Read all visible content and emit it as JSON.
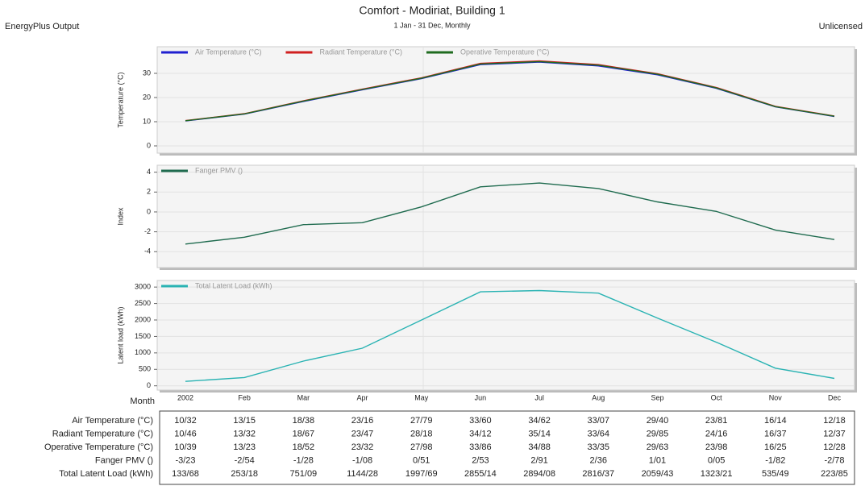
{
  "header": {
    "app": "EnergyPlus Output",
    "title": "Comfort - Modiriat, Building 1",
    "subtitle": "1 Jan - 31 Dec, Monthly",
    "license": "Unlicensed"
  },
  "table": {
    "month_label": "Month"
  },
  "chart_data": [
    {
      "type": "line",
      "ylabel": "Temperature (°C)",
      "ylim": [
        -3,
        41
      ],
      "yticks": [
        0,
        10,
        20,
        30
      ],
      "grid": true,
      "series": [
        {
          "name": "Air Temperature (°C)",
          "color": "#1f1fd0",
          "values": [
            10.32,
            13.15,
            18.38,
            23.16,
            27.79,
            33.6,
            34.62,
            33.07,
            29.4,
            23.81,
            16.14,
            12.18
          ],
          "value_labels": [
            "10/32",
            "13/15",
            "18/38",
            "23/16",
            "27/79",
            "33/60",
            "34/62",
            "33/07",
            "29/40",
            "23/81",
            "16/14",
            "12/18"
          ]
        },
        {
          "name": "Radiant Temperature (°C)",
          "color": "#d01f1f",
          "values": [
            10.46,
            13.32,
            18.67,
            23.47,
            28.18,
            34.12,
            35.14,
            33.64,
            29.85,
            24.16,
            16.37,
            12.37
          ],
          "value_labels": [
            "10/46",
            "13/32",
            "18/67",
            "23/47",
            "28/18",
            "34/12",
            "35/14",
            "33/64",
            "29/85",
            "24/16",
            "16/37",
            "12/37"
          ]
        },
        {
          "name": "Operative Temperature (°C)",
          "color": "#1f6b1f",
          "values": [
            10.39,
            13.23,
            18.52,
            23.32,
            27.98,
            33.86,
            34.88,
            33.35,
            29.63,
            23.98,
            16.25,
            12.28
          ],
          "value_labels": [
            "10/39",
            "13/23",
            "18/52",
            "23/32",
            "27/98",
            "33/86",
            "34/88",
            "33/35",
            "29/63",
            "23/98",
            "16/25",
            "12/28"
          ]
        }
      ]
    },
    {
      "type": "line",
      "ylabel": "Index",
      "ylim": [
        -5.6,
        4.7
      ],
      "yticks": [
        -4,
        -2,
        0,
        2,
        4
      ],
      "grid": true,
      "series": [
        {
          "name": "Fanger PMV ()",
          "color": "#1f6b4f",
          "values": [
            -3.23,
            -2.54,
            -1.28,
            -1.08,
            0.51,
            2.53,
            2.91,
            2.36,
            1.01,
            0.05,
            -1.82,
            -2.78
          ],
          "value_labels": [
            "-3/23",
            "-2/54",
            "-1/28",
            "-1/08",
            "0/51",
            "2/53",
            "2/91",
            "2/36",
            "1/01",
            "0/05",
            "-1/82",
            "-2/78"
          ]
        }
      ]
    },
    {
      "type": "line",
      "ylabel": "Latent load (kWh)",
      "ylim": [
        -130,
        3200
      ],
      "yticks": [
        0,
        500,
        1000,
        1500,
        2000,
        2500,
        3000
      ],
      "grid": true,
      "categories": [
        "2002",
        "Feb",
        "Mar",
        "Apr",
        "May",
        "Jun",
        "Jul",
        "Aug",
        "Sep",
        "Oct",
        "Nov",
        "Dec"
      ],
      "series": [
        {
          "name": "Total Latent Load (kWh)",
          "color": "#2ab3b3",
          "values": [
            133.68,
            253.18,
            751.09,
            1144.28,
            1997.69,
            2855.14,
            2894.08,
            2816.37,
            2059.43,
            1323.21,
            535.49,
            223.85
          ],
          "value_labels": [
            "133/68",
            "253/18",
            "751/09",
            "1144/28",
            "1997/69",
            "2855/14",
            "2894/08",
            "2816/37",
            "2059/43",
            "1323/21",
            "535/49",
            "223/85"
          ]
        }
      ]
    }
  ]
}
